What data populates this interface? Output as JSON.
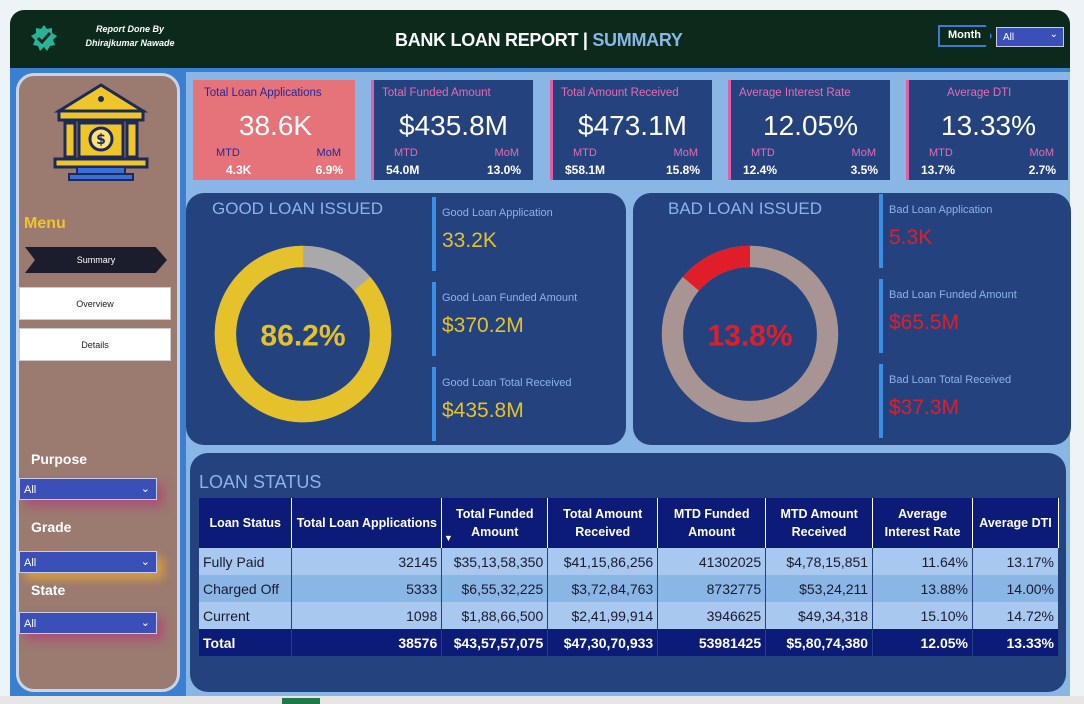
{
  "header": {
    "credit_line1": "Report Done By",
    "credit_line2": "Dhirajkumar Nawade",
    "title_main": "BANK LOAN REPORT |",
    "title_accent": "SUMMARY",
    "month_label": "Month",
    "month_value": "All"
  },
  "sidebar": {
    "menu_label": "Menu",
    "nav": [
      {
        "label": "Summary",
        "active": true
      },
      {
        "label": "Overview",
        "active": false
      },
      {
        "label": "Details",
        "active": false
      }
    ],
    "filters": [
      {
        "label": "Purpose",
        "value": "All"
      },
      {
        "label": "Grade",
        "value": "All"
      },
      {
        "label": "State",
        "value": "All"
      }
    ]
  },
  "kpis": [
    {
      "title": "Total Loan Applications",
      "value": "38.6K",
      "mtd_label": "MTD",
      "mtd": "4.3K",
      "mom_label": "MoM",
      "mom": "6.9%"
    },
    {
      "title": "Total Funded Amount",
      "value": "$435.8M",
      "mtd_label": "MTD",
      "mtd": "54.0M",
      "mom_label": "MoM",
      "mom": "13.0%"
    },
    {
      "title": "Total Amount Received",
      "value": "$473.1M",
      "mtd_label": "MTD",
      "mtd": "$58.1M",
      "mom_label": "MoM",
      "mom": "15.8%"
    },
    {
      "title": "Average Interest Rate",
      "value": "12.05%",
      "mtd_label": "MTD",
      "mtd": "12.4%",
      "mom_label": "MoM",
      "mom": "3.5%"
    },
    {
      "title": "Average DTI",
      "value": "13.33%",
      "mtd_label": "MTD",
      "mtd": "13.7%",
      "mom_label": "MoM",
      "mom": "2.7%"
    }
  ],
  "good_loan": {
    "title": "GOOD LOAN ISSUED",
    "percent_label": "86.2%",
    "percent": 0.862,
    "color": "#e5c12c",
    "track_color": "#a9a9a9",
    "stats": [
      {
        "label": "Good Loan Application",
        "value": "33.2K"
      },
      {
        "label": "Good Loan Funded Amount",
        "value": "$370.2M"
      },
      {
        "label": "Good Loan Total Received",
        "value": "$435.8M"
      }
    ]
  },
  "bad_loan": {
    "title": "BAD LOAN ISSUED",
    "percent_label": "13.8%",
    "percent": 0.138,
    "color": "#e01e2a",
    "track_color": "#a89492",
    "stats": [
      {
        "label": "Bad Loan Application",
        "value": "5.3K"
      },
      {
        "label": "Bad Loan Funded Amount",
        "value": "$65.5M"
      },
      {
        "label": "Bad Loan Total Received",
        "value": "$37.3M"
      }
    ]
  },
  "loan_status": {
    "title": "LOAN STATUS",
    "columns": [
      "Loan Status",
      "Total Loan Applications",
      "Total Funded Amount",
      "Total Amount Received",
      "MTD Funded Amount",
      "MTD Amount Received",
      "Average Interest Rate",
      "Average DTI"
    ],
    "rows": [
      [
        "Fully Paid",
        "32145",
        "$35,13,58,350",
        "$41,15,86,256",
        "41302025",
        "$4,78,15,851",
        "11.64%",
        "13.17%"
      ],
      [
        "Charged Off",
        "5333",
        "$6,55,32,225",
        "$3,72,84,763",
        "8732775",
        "$53,24,211",
        "13.88%",
        "14.00%"
      ],
      [
        "Current",
        "1098",
        "$1,88,66,500",
        "$2,41,99,914",
        "3946625",
        "$49,34,318",
        "15.10%",
        "14.72%"
      ]
    ],
    "total": [
      "Total",
      "38576",
      "$43,57,57,075",
      "$47,30,70,933",
      "53981425",
      "$5,80,74,380",
      "12.05%",
      "13.33%"
    ]
  }
}
